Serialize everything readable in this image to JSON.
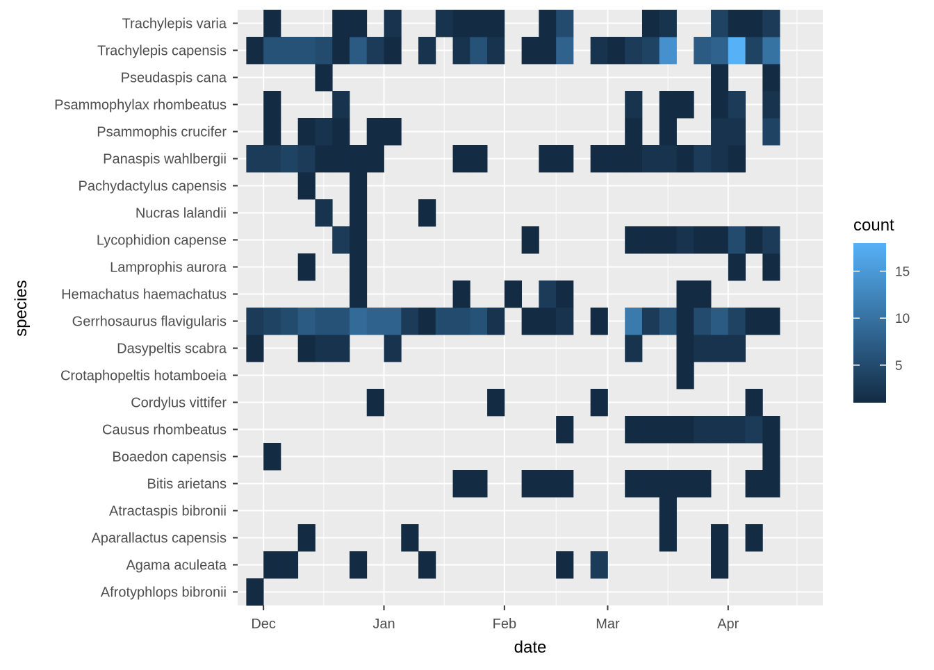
{
  "chart_data": {
    "type": "heatmap",
    "xlabel": "date",
    "ylabel": "species",
    "x_ticks": [
      {
        "label": "Dec",
        "week": 0.5
      },
      {
        "label": "Jan",
        "week": 7.5
      },
      {
        "label": "Feb",
        "week": 14.5
      },
      {
        "label": "Mar",
        "week": 20.5
      },
      {
        "label": "Apr",
        "week": 27.5
      }
    ],
    "x_domain": [
      -1.0,
      33.0
    ],
    "species": [
      "Afrotyphlops bibronii",
      "Agama aculeata",
      "Aparallactus capensis",
      "Atractaspis bibronii",
      "Bitis arietans",
      "Boaedon capensis",
      "Causus rhombeatus",
      "Cordylus vittifer",
      "Crotaphopeltis hotamboeia",
      "Dasypeltis scabra",
      "Gerrhosaurus flavigularis",
      "Hemachatus haemachatus",
      "Lamprophis aurora",
      "Lycophidion capense",
      "Nucras lalandii",
      "Pachydactylus capensis",
      "Panaspis wahlbergii",
      "Psammophis crucifer",
      "Psammophylax rhombeatus",
      "Pseudaspis cana",
      "Trachylepis capensis",
      "Trachylepis varia"
    ],
    "cells": {
      "Afrotyphlops bibronii": [
        [
          0,
          1
        ]
      ],
      "Agama aculeata": [
        [
          1,
          1
        ],
        [
          2,
          1
        ],
        [
          6,
          1
        ],
        [
          10,
          1
        ],
        [
          18,
          1
        ],
        [
          20,
          3
        ],
        [
          27,
          1
        ]
      ],
      "Aparallactus capensis": [
        [
          3,
          1
        ],
        [
          9,
          1
        ],
        [
          24,
          1
        ],
        [
          27,
          1
        ],
        [
          29,
          1
        ]
      ],
      "Atractaspis bibronii": [
        [
          24,
          1
        ]
      ],
      "Bitis arietans": [
        [
          12,
          1
        ],
        [
          13,
          1
        ],
        [
          16,
          1
        ],
        [
          17,
          1
        ],
        [
          18,
          1
        ],
        [
          22,
          1
        ],
        [
          23,
          1
        ],
        [
          24,
          1
        ],
        [
          25,
          1
        ],
        [
          26,
          1
        ],
        [
          29,
          1
        ],
        [
          30,
          1
        ]
      ],
      "Boaedon capensis": [
        [
          1,
          1
        ],
        [
          30,
          1
        ]
      ],
      "Causus rhombeatus": [
        [
          18,
          1
        ],
        [
          22,
          1
        ],
        [
          23,
          1
        ],
        [
          24,
          1
        ],
        [
          25,
          1
        ],
        [
          26,
          2
        ],
        [
          27,
          2
        ],
        [
          28,
          2
        ],
        [
          29,
          3
        ],
        [
          30,
          1
        ]
      ],
      "Cordylus vittifer": [
        [
          7,
          1
        ],
        [
          14,
          1
        ],
        [
          20,
          1
        ],
        [
          29,
          1
        ]
      ],
      "Crotaphopeltis hotamboeia": [
        [
          25,
          1
        ]
      ],
      "Dasypeltis scabra": [
        [
          0,
          1
        ],
        [
          3,
          1
        ],
        [
          4,
          2
        ],
        [
          5,
          2
        ],
        [
          8,
          2
        ],
        [
          22,
          2
        ],
        [
          25,
          1
        ],
        [
          26,
          2
        ],
        [
          27,
          2
        ],
        [
          28,
          2
        ]
      ],
      "Gerrhosaurus flavigularis": [
        [
          0,
          3
        ],
        [
          1,
          4
        ],
        [
          2,
          5
        ],
        [
          3,
          7
        ],
        [
          4,
          6
        ],
        [
          5,
          6
        ],
        [
          6,
          9
        ],
        [
          7,
          8
        ],
        [
          8,
          8
        ],
        [
          9,
          3
        ],
        [
          10,
          1
        ],
        [
          11,
          5
        ],
        [
          12,
          5
        ],
        [
          13,
          6
        ],
        [
          14,
          2
        ],
        [
          16,
          1
        ],
        [
          17,
          1
        ],
        [
          18,
          2
        ],
        [
          20,
          1
        ],
        [
          22,
          11
        ],
        [
          23,
          3
        ],
        [
          24,
          6
        ],
        [
          25,
          1
        ],
        [
          26,
          5
        ],
        [
          27,
          7
        ],
        [
          28,
          4
        ],
        [
          29,
          1
        ],
        [
          30,
          1
        ]
      ],
      "Hemachatus haemachatus": [
        [
          6,
          1
        ],
        [
          12,
          1
        ],
        [
          15,
          1
        ],
        [
          17,
          3
        ],
        [
          18,
          1
        ],
        [
          25,
          1
        ],
        [
          26,
          1
        ]
      ],
      "Lamprophis aurora": [
        [
          3,
          1
        ],
        [
          6,
          1
        ],
        [
          28,
          1
        ],
        [
          30,
          1
        ]
      ],
      "Lycophidion capense": [
        [
          5,
          3
        ],
        [
          6,
          1
        ],
        [
          16,
          1
        ],
        [
          22,
          1
        ],
        [
          23,
          1
        ],
        [
          24,
          1
        ],
        [
          25,
          2
        ],
        [
          26,
          1
        ],
        [
          27,
          1
        ],
        [
          28,
          5
        ],
        [
          29,
          1
        ],
        [
          30,
          3
        ]
      ],
      "Nucras lalandii": [
        [
          4,
          2
        ],
        [
          6,
          1
        ],
        [
          10,
          1
        ]
      ],
      "Pachydactylus capensis": [
        [
          3,
          1
        ],
        [
          6,
          1
        ]
      ],
      "Panaspis wahlbergii": [
        [
          0,
          3
        ],
        [
          1,
          3
        ],
        [
          2,
          4
        ],
        [
          3,
          3
        ],
        [
          4,
          1
        ],
        [
          5,
          1
        ],
        [
          6,
          1
        ],
        [
          7,
          1
        ],
        [
          12,
          1
        ],
        [
          13,
          1
        ],
        [
          17,
          1
        ],
        [
          18,
          1
        ],
        [
          20,
          1
        ],
        [
          21,
          1
        ],
        [
          22,
          1
        ],
        [
          23,
          2
        ],
        [
          24,
          2
        ],
        [
          25,
          1
        ],
        [
          26,
          3
        ],
        [
          27,
          2
        ],
        [
          28,
          1
        ]
      ],
      "Psammophis crucifer": [
        [
          1,
          1
        ],
        [
          3,
          1
        ],
        [
          4,
          2
        ],
        [
          5,
          1
        ],
        [
          7,
          1
        ],
        [
          8,
          1
        ],
        [
          22,
          1
        ],
        [
          24,
          1
        ],
        [
          27,
          2
        ],
        [
          28,
          2
        ],
        [
          30,
          4
        ]
      ],
      "Psammophylax rhombeatus": [
        [
          1,
          1
        ],
        [
          5,
          2
        ],
        [
          22,
          2
        ],
        [
          24,
          1
        ],
        [
          25,
          1
        ],
        [
          27,
          1
        ],
        [
          28,
          3
        ],
        [
          30,
          2
        ]
      ],
      "Pseudaspis cana": [
        [
          4,
          1
        ],
        [
          27,
          1
        ],
        [
          30,
          1
        ]
      ],
      "Trachylepis capensis": [
        [
          0,
          1
        ],
        [
          1,
          6
        ],
        [
          2,
          6
        ],
        [
          3,
          6
        ],
        [
          4,
          5
        ],
        [
          5,
          1
        ],
        [
          6,
          7
        ],
        [
          7,
          3
        ],
        [
          8,
          1
        ],
        [
          10,
          2
        ],
        [
          12,
          2
        ],
        [
          13,
          6
        ],
        [
          14,
          2
        ],
        [
          16,
          1
        ],
        [
          17,
          1
        ],
        [
          18,
          8
        ],
        [
          20,
          2
        ],
        [
          21,
          1
        ],
        [
          22,
          3
        ],
        [
          23,
          4
        ],
        [
          24,
          14
        ],
        [
          26,
          7
        ],
        [
          27,
          8
        ],
        [
          28,
          18
        ],
        [
          29,
          4
        ],
        [
          30,
          10
        ]
      ],
      "Trachylepis varia": [
        [
          1,
          1
        ],
        [
          5,
          1
        ],
        [
          6,
          1
        ],
        [
          8,
          2
        ],
        [
          11,
          2
        ],
        [
          12,
          1
        ],
        [
          13,
          1
        ],
        [
          14,
          1
        ],
        [
          17,
          1
        ],
        [
          18,
          5
        ],
        [
          23,
          1
        ],
        [
          24,
          2
        ],
        [
          27,
          4
        ],
        [
          28,
          1
        ],
        [
          29,
          1
        ],
        [
          30,
          3
        ]
      ]
    },
    "color_scale": {
      "title": "count",
      "low_color": "#132B43",
      "high_color": "#56B1F7",
      "domain": [
        1,
        18
      ],
      "breaks": [
        5,
        10,
        15
      ]
    }
  }
}
